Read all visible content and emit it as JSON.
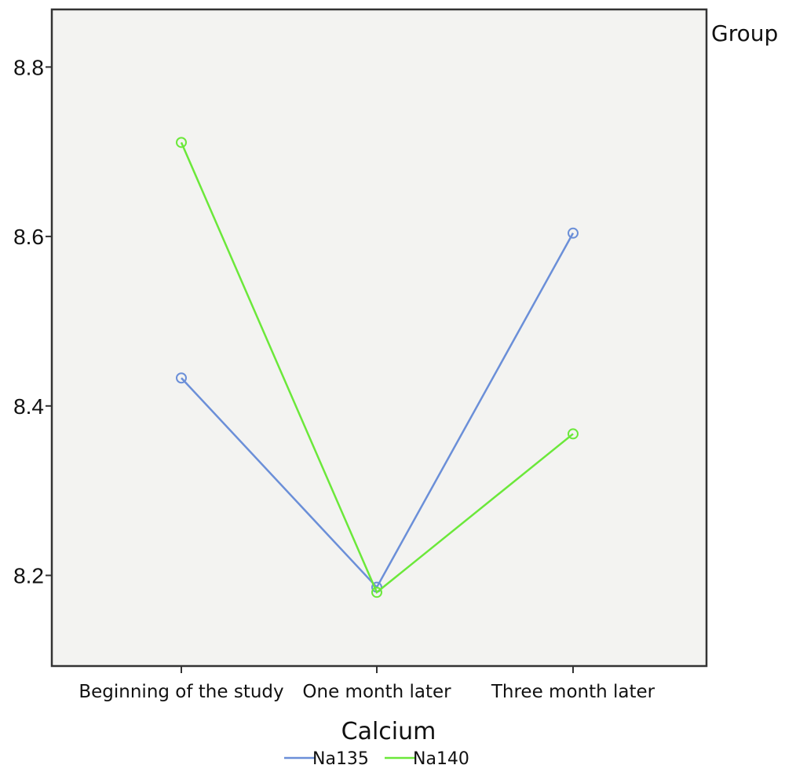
{
  "chart_data": {
    "type": "line",
    "xlabel": "Calcium",
    "legend_title": "Group",
    "categories": [
      "Beginning of the study",
      "One month later",
      "Three month later"
    ],
    "y_ticks": [
      "8.2",
      "8.4",
      "8.6",
      "8.8"
    ],
    "ylim": [
      8.093,
      8.868
    ],
    "grid": false,
    "legend_position": "bottom",
    "plot_background": "#f3f3f1",
    "series": [
      {
        "name": "Na135",
        "color": "#6b8fd8",
        "values": [
          8.433,
          8.186,
          8.604
        ]
      },
      {
        "name": "Na140",
        "color": "#6be83a",
        "values": [
          8.711,
          8.18,
          8.367
        ]
      }
    ]
  }
}
